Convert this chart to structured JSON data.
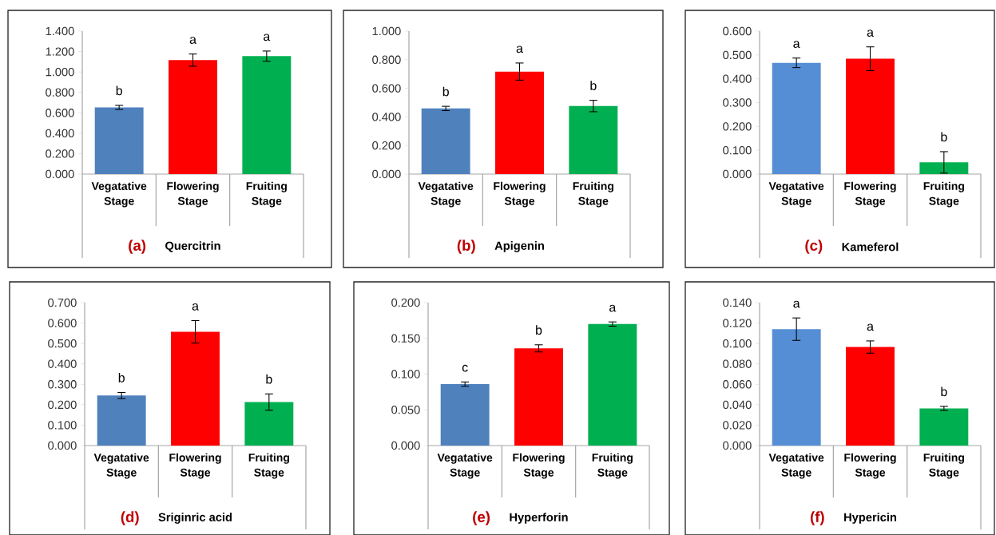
{
  "chart_data": [
    {
      "type": "bar",
      "categories": [
        "Vegatative Stage",
        "Flowering Stage",
        "Fruiting Stage"
      ],
      "values": [
        0.653,
        1.116,
        1.155
      ],
      "errors": [
        0.02,
        0.06,
        0.05
      ],
      "value_labels": [
        "b",
        "a",
        "a"
      ],
      "colors": [
        "#4f81bd",
        "#ff0000",
        "#00b050"
      ],
      "xlabel": "Quercitrin",
      "annotations": [
        "(a)"
      ],
      "ylim": [
        0,
        1.4
      ],
      "yticks": [
        {
          "value": 0,
          "label": "0.000"
        },
        {
          "value": 0.2,
          "label": "0.200"
        },
        {
          "value": 0.4,
          "label": "0.400"
        },
        {
          "value": 0.6,
          "label": "0.600"
        },
        {
          "value": 0.8,
          "label": "0.800"
        },
        {
          "value": 1.0,
          "label": "1.000"
        },
        {
          "value": 1.2,
          "label": "1.200"
        },
        {
          "value": 1.4,
          "label": "1.400"
        }
      ]
    },
    {
      "type": "bar",
      "categories": [
        "Vegatative Stage",
        "Flowering Stage",
        "Fruiting Stage"
      ],
      "values": [
        0.459,
        0.717,
        0.476
      ],
      "errors": [
        0.015,
        0.06,
        0.04
      ],
      "value_labels": [
        "b",
        "a",
        "b"
      ],
      "colors": [
        "#4f81bd",
        "#ff0000",
        "#00b050"
      ],
      "xlabel": "Apigenin",
      "annotations": [
        "(b)"
      ],
      "ylim": [
        0,
        1.0
      ],
      "yticks": [
        {
          "value": 0,
          "label": "0.000"
        },
        {
          "value": 0.2,
          "label": "0.200"
        },
        {
          "value": 0.4,
          "label": "0.400"
        },
        {
          "value": 0.6,
          "label": "0.600"
        },
        {
          "value": 0.8,
          "label": "0.800"
        },
        {
          "value": 1.0,
          "label": "1.000"
        }
      ]
    },
    {
      "type": "bar",
      "categories": [
        "Vegatative Stage",
        "Flowering Stage",
        "Fruiting Stage"
      ],
      "values": [
        0.467,
        0.484,
        0.049
      ],
      "errors": [
        0.02,
        0.05,
        0.045
      ],
      "value_labels": [
        "a",
        "a",
        "b"
      ],
      "colors": [
        "#558ed5",
        "#ff0000",
        "#00b050"
      ],
      "xlabel": "Kameferol",
      "annotations": [
        "(c)"
      ],
      "ylim": [
        0,
        0.6
      ],
      "yticks": [
        {
          "value": 0,
          "label": "0.000"
        },
        {
          "value": 0.1,
          "label": "0.100"
        },
        {
          "value": 0.2,
          "label": "0.200"
        },
        {
          "value": 0.3,
          "label": "0.300"
        },
        {
          "value": 0.4,
          "label": "0.400"
        },
        {
          "value": 0.5,
          "label": "0.500"
        },
        {
          "value": 0.6,
          "label": "0.600"
        }
      ]
    },
    {
      "type": "bar",
      "categories": [
        "Vegatative Stage",
        "Flowering Stage",
        "Fruiting Stage"
      ],
      "values": [
        0.245,
        0.557,
        0.213
      ],
      "errors": [
        0.015,
        0.055,
        0.04
      ],
      "value_labels": [
        "b",
        "a",
        "b"
      ],
      "colors": [
        "#4f81bd",
        "#ff0000",
        "#00b050"
      ],
      "xlabel": "Sriginric acid",
      "annotations": [
        "(d)"
      ],
      "ylim": [
        0,
        0.7
      ],
      "yticks": [
        {
          "value": 0,
          "label": "0.000"
        },
        {
          "value": 0.1,
          "label": "0.100"
        },
        {
          "value": 0.2,
          "label": "0.200"
        },
        {
          "value": 0.3,
          "label": "0.300"
        },
        {
          "value": 0.4,
          "label": "0.400"
        },
        {
          "value": 0.5,
          "label": "0.500"
        },
        {
          "value": 0.6,
          "label": "0.600"
        },
        {
          "value": 0.7,
          "label": "0.700"
        }
      ]
    },
    {
      "type": "bar",
      "categories": [
        "Vegatative Stage",
        "Flowering Stage",
        "Fruiting Stage"
      ],
      "values": [
        0.086,
        0.136,
        0.17
      ],
      "errors": [
        0.003,
        0.005,
        0.003
      ],
      "value_labels": [
        "c",
        "b",
        "a"
      ],
      "colors": [
        "#4f81bd",
        "#ff0000",
        "#00b050"
      ],
      "xlabel": "Hyperforin",
      "annotations": [
        "(e)"
      ],
      "ylim": [
        0,
        0.2
      ],
      "yticks": [
        {
          "value": 0,
          "label": "0.000"
        },
        {
          "value": 0.05,
          "label": "0.050"
        },
        {
          "value": 0.1,
          "label": "0.100"
        },
        {
          "value": 0.15,
          "label": "0.150"
        },
        {
          "value": 0.2,
          "label": "0.200"
        }
      ]
    },
    {
      "type": "bar",
      "categories": [
        "Vegatative Stage",
        "Flowering Stage",
        "Fruiting Stage"
      ],
      "values": [
        0.114,
        0.0965,
        0.0364
      ],
      "errors": [
        0.011,
        0.006,
        0.002
      ],
      "value_labels": [
        "a",
        "a",
        "b"
      ],
      "colors": [
        "#558ed5",
        "#ff0000",
        "#00b050"
      ],
      "xlabel": "Hypericin",
      "annotations": [
        "(f)"
      ],
      "ylim": [
        0,
        0.14
      ],
      "yticks": [
        {
          "value": 0,
          "label": "0.000"
        },
        {
          "value": 0.02,
          "label": "0.020"
        },
        {
          "value": 0.04,
          "label": "0.040"
        },
        {
          "value": 0.06,
          "label": "0.060"
        },
        {
          "value": 0.08,
          "label": "0.080"
        },
        {
          "value": 0.1,
          "label": "0.100"
        },
        {
          "value": 0.12,
          "label": "0.120"
        },
        {
          "value": 0.14,
          "label": "0.140"
        }
      ]
    }
  ]
}
